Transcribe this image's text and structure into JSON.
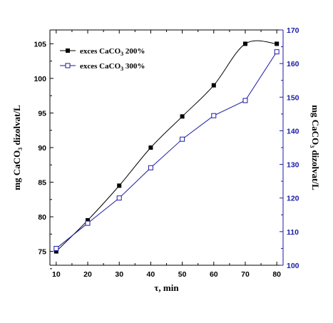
{
  "chart_data": {
    "type": "line",
    "xlabel": "τ, min",
    "ylabel_left": "mg CaCO",
    "ylabel_left_sub": "3",
    "ylabel_left_rest": " dizolvat/L",
    "ylabel_right": "mg CaCO",
    "ylabel_right_sub": "3",
    "ylabel_right_rest": " dizolvat/L",
    "x": [
      10,
      20,
      30,
      40,
      50,
      60,
      70,
      80
    ],
    "xlim": [
      8,
      82
    ],
    "xticks": [
      10,
      20,
      30,
      40,
      50,
      60,
      70,
      80
    ],
    "ylim_left": [
      73,
      107
    ],
    "yticks_left": [
      75,
      80,
      85,
      90,
      95,
      100,
      105
    ],
    "ylim_right": [
      100,
      170
    ],
    "yticks_right": [
      100,
      110,
      120,
      130,
      140,
      150,
      160,
      170
    ],
    "right_axis_color": "#1a1aa6",
    "grid": false,
    "legend_position": "top-left",
    "series": [
      {
        "name": "exces CaCO",
        "name_sub": "3",
        "name_rest": " 200%",
        "axis": "left",
        "marker": "filled-square",
        "color": "#000000",
        "values": [
          75,
          79.5,
          84.5,
          90,
          94.5,
          99,
          105,
          105
        ]
      },
      {
        "name": "exces CaCO",
        "name_sub": "3",
        "name_rest": " 300%",
        "axis": "right",
        "marker": "open-square",
        "color": "#1a1aa6",
        "values": [
          105,
          112.5,
          120,
          129,
          137.5,
          144.5,
          149,
          163.5
        ]
      }
    ]
  }
}
